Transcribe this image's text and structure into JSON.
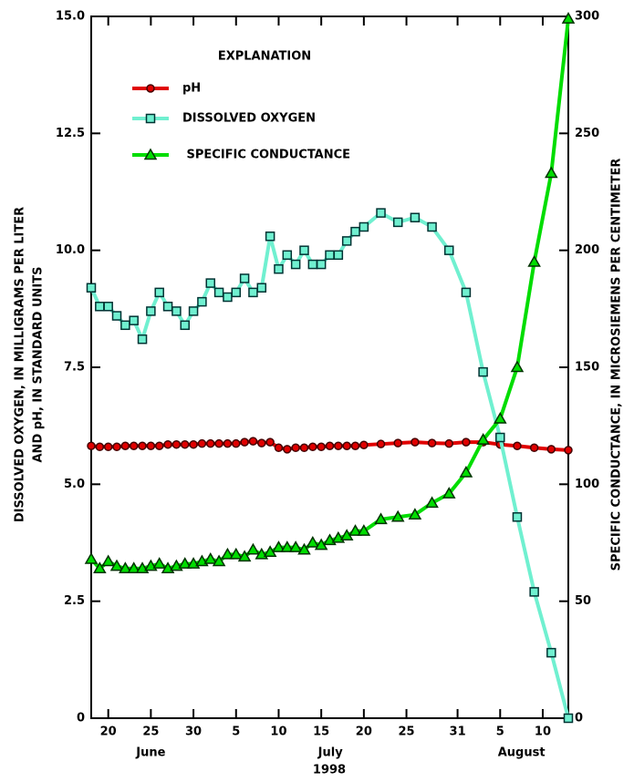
{
  "chart_data": {
    "type": "line",
    "explanation": "EXPLANATION",
    "ylabel": [
      "DISSOLVED OXYGEN, IN MILLIGRAMS PER LITER",
      "AND pH, IN STANDARD UNITS"
    ],
    "y2label": "SPECIFIC CONDUCTANCE, IN MICROSIEMENS PER CENTIMETER",
    "month_labels": [
      "June",
      "July",
      "August"
    ],
    "xlabel": "1998",
    "x": [
      "1998-06-18",
      "1998-06-19",
      "1998-06-20",
      "1998-06-21",
      "1998-06-22",
      "1998-06-23",
      "1998-06-24",
      "1998-06-25",
      "1998-06-26",
      "1998-06-27",
      "1998-06-28",
      "1998-06-29",
      "1998-06-30",
      "1998-07-01",
      "1998-07-02",
      "1998-07-03",
      "1998-07-04",
      "1998-07-05",
      "1998-07-06",
      "1998-07-07",
      "1998-07-08",
      "1998-07-09",
      "1998-07-10",
      "1998-07-11",
      "1998-07-12",
      "1998-07-13",
      "1998-07-14",
      "1998-07-15",
      "1998-07-16",
      "1998-07-17",
      "1998-07-18",
      "1998-07-19",
      "1998-07-20",
      "1998-07-22",
      "1998-07-24",
      "1998-07-26",
      "1998-07-28",
      "1998-07-30",
      "1998-08-01",
      "1998-08-03",
      "1998-08-05",
      "1998-08-07",
      "1998-08-09",
      "1998-08-11",
      "1998-08-13"
    ],
    "xlim": [
      "1998-06-18",
      "1998-08-13"
    ],
    "xticks": [
      {
        "value": "1998-06-20",
        "label": "20"
      },
      {
        "value": "1998-06-25",
        "label": "25"
      },
      {
        "value": "1998-06-30",
        "label": "30"
      },
      {
        "value": "1998-07-05",
        "label": "5"
      },
      {
        "value": "1998-07-10",
        "label": "10"
      },
      {
        "value": "1998-07-15",
        "label": "15"
      },
      {
        "value": "1998-07-20",
        "label": "20"
      },
      {
        "value": "1998-07-25",
        "label": "25"
      },
      {
        "value": "1998-07-31",
        "label": "31"
      },
      {
        "value": "1998-08-05",
        "label": "5"
      },
      {
        "value": "1998-08-10",
        "label": "10"
      }
    ],
    "ylim": [
      0,
      15
    ],
    "yticks": [
      0,
      2.5,
      {
        "value": 5,
        "label": "5.0"
      },
      7.5,
      {
        "value": 10,
        "label": "10.0"
      },
      12.5,
      {
        "value": 15,
        "label": "15.0"
      }
    ],
    "y2lim": [
      0,
      300
    ],
    "y2ticks": [
      0,
      50,
      100,
      150,
      200,
      250,
      300
    ],
    "series": [
      {
        "name": "pH",
        "color": "#e00000",
        "marker": "circle",
        "values": [
          5.82,
          5.8,
          5.8,
          5.8,
          5.82,
          5.82,
          5.82,
          5.82,
          5.82,
          5.85,
          5.85,
          5.85,
          5.85,
          5.87,
          5.87,
          5.87,
          5.87,
          5.87,
          5.9,
          5.92,
          5.88,
          5.9,
          5.78,
          5.75,
          5.78,
          5.78,
          5.8,
          5.8,
          5.82,
          5.82,
          5.82,
          5.82,
          5.84,
          5.86,
          5.88,
          5.9,
          5.88,
          5.87,
          5.9,
          5.9,
          5.85,
          5.82,
          5.78,
          5.75,
          5.73
        ]
      },
      {
        "name": "DISSOLVED OXYGEN",
        "color": "#70f0d0",
        "marker": "square",
        "values": [
          9.2,
          8.8,
          8.8,
          8.6,
          8.4,
          8.5,
          8.1,
          8.7,
          9.1,
          8.8,
          8.7,
          8.4,
          8.7,
          8.9,
          9.3,
          9.1,
          9.0,
          9.1,
          9.4,
          9.1,
          9.2,
          10.3,
          9.6,
          9.9,
          9.7,
          10.0,
          9.7,
          9.7,
          9.9,
          9.9,
          10.2,
          10.4,
          10.5,
          10.8,
          10.6,
          10.7,
          10.5,
          10.0,
          9.1,
          7.4,
          6.0,
          4.3,
          2.7,
          1.4,
          0.0
        ]
      },
      {
        "name": " SPECIFIC CONDUCTANCE",
        "color": "#00dd00",
        "marker": "triangle",
        "axis": "y2",
        "values": [
          68,
          64,
          67,
          65,
          64,
          64,
          64,
          65,
          66,
          64,
          65,
          66,
          66,
          67,
          68,
          67,
          70,
          70,
          69,
          72,
          70,
          71,
          73,
          73,
          73,
          72,
          75,
          74,
          76,
          77,
          78,
          80,
          80,
          85,
          86,
          87,
          92,
          96,
          105,
          119,
          128,
          150,
          195,
          233,
          299
        ]
      }
    ]
  }
}
